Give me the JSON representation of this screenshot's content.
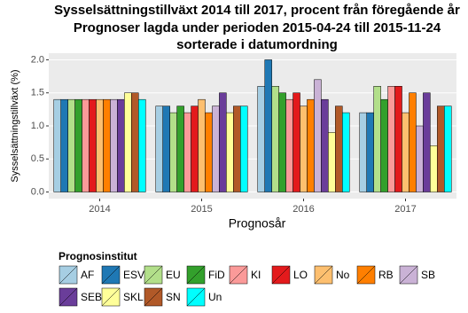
{
  "chart_data": {
    "type": "bar",
    "title": [
      "Sysselsättningstillväxt 2014 till 2017, procent från föregående år",
      "Prognoser lagda under perioden 2015-04-24 till 2015-11-24",
      "sorterade i datumordning"
    ],
    "x_label": "Prognosår",
    "y_label": "Sysselsättningstillväxt (%)",
    "legend_title": "Prognosinstitut",
    "categories": [
      "2014",
      "2015",
      "2016",
      "2017"
    ],
    "ylim": [
      -0.1,
      2.1
    ],
    "yticks": [
      {
        "value": 0,
        "label": "0.0"
      },
      0.5,
      {
        "value": 1,
        "label": "1.0"
      },
      1.5,
      {
        "value": 2,
        "label": "2.0"
      }
    ],
    "grid": true,
    "series": [
      {
        "name": "AF",
        "color": "#a6cee3",
        "values": [
          1.4,
          1.3,
          1.6,
          1.2
        ]
      },
      {
        "name": "ESV",
        "color": "#1f78b4",
        "values": [
          1.4,
          1.3,
          2.0,
          1.2
        ]
      },
      {
        "name": "EU",
        "color": "#b2df8a",
        "values": [
          1.4,
          1.2,
          1.6,
          1.6
        ]
      },
      {
        "name": "FiD",
        "color": "#33a02c",
        "values": [
          1.4,
          1.3,
          1.5,
          1.4
        ]
      },
      {
        "name": "KI",
        "color": "#fb9a99",
        "values": [
          1.4,
          1.2,
          1.4,
          1.6
        ]
      },
      {
        "name": "LO",
        "color": "#e31a1c",
        "values": [
          1.4,
          1.3,
          1.5,
          1.6
        ]
      },
      {
        "name": "No",
        "color": "#fdbf6f",
        "values": [
          1.4,
          1.4,
          1.3,
          1.2
        ]
      },
      {
        "name": "RB",
        "color": "#ff7f00",
        "values": [
          1.4,
          1.2,
          1.4,
          1.5
        ]
      },
      {
        "name": "SB",
        "color": "#cab2d6",
        "values": [
          1.4,
          1.3,
          1.7,
          1.0
        ]
      },
      {
        "name": "SEB",
        "color": "#6a3d9a",
        "values": [
          1.4,
          1.5,
          1.4,
          1.5
        ]
      },
      {
        "name": "SKL",
        "color": "#ffff99",
        "values": [
          1.5,
          1.2,
          0.9,
          0.7
        ]
      },
      {
        "name": "SN",
        "color": "#b15928",
        "values": [
          1.5,
          1.3,
          1.3,
          1.3
        ]
      },
      {
        "name": "Un",
        "color": "#00ffff",
        "values": [
          1.4,
          1.3,
          1.2,
          1.3
        ]
      }
    ]
  }
}
